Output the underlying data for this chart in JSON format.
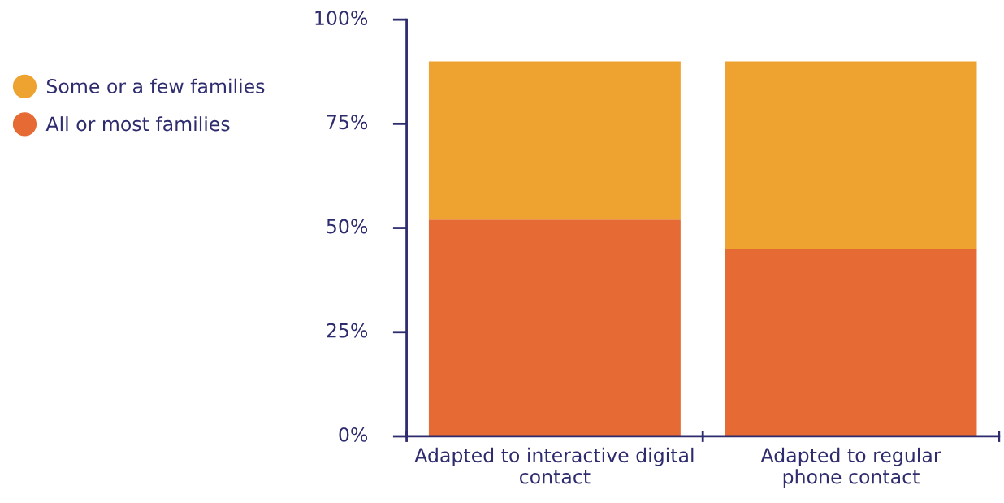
{
  "chart_data": {
    "type": "bar",
    "stacked": true,
    "categories": [
      "Adapted to interactive digital\ncontact",
      "Adapted to regular\nphone contact"
    ],
    "series": [
      {
        "name": "All or most families",
        "color": "#e66a33",
        "values": [
          52,
          45
        ]
      },
      {
        "name": "Some or a few families",
        "color": "#eea22f",
        "values": [
          38,
          45
        ]
      }
    ],
    "ylim": [
      0,
      100
    ],
    "yticks": [
      {
        "value": 0,
        "label": "0%"
      },
      {
        "value": 25,
        "label": "25%"
      },
      {
        "value": 50,
        "label": "50%"
      },
      {
        "value": 75,
        "label": "75%"
      },
      {
        "value": 100,
        "label": "100%"
      }
    ],
    "grid": false,
    "legend": "left"
  }
}
